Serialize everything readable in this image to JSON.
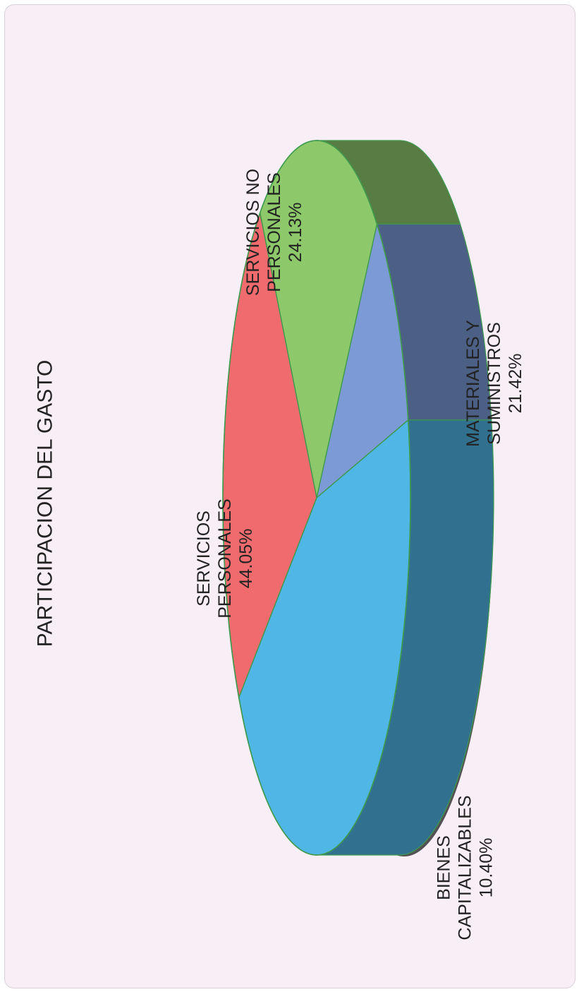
{
  "chart_data": {
    "type": "pie",
    "title": "PARTICIPACION DEL GASTO",
    "slices": [
      {
        "label": "SERVICIOS PERSONALES",
        "label_lines": [
          "SERVICIOS",
          "PERSONALES"
        ],
        "value": 44.05,
        "value_label": "44.05%",
        "color": "#4fb6e6"
      },
      {
        "label": "BIENES CAPITALIZABLES",
        "label_lines": [
          "BIENES",
          "CAPITALIZABLES"
        ],
        "value": 10.4,
        "value_label": "10.40%",
        "color": "#7b9ad6"
      },
      {
        "label": "MATERIALES Y SUMINISTROS",
        "label_lines": [
          "MATERIALES Y",
          "SUMINISTROS"
        ],
        "value": 21.42,
        "value_label": "21.42%",
        "color": "#8dc96a"
      },
      {
        "label": "SERVICIOS NO PERSONALES",
        "label_lines": [
          "SERVICIOS NO",
          "PERSONALES"
        ],
        "value": 24.13,
        "value_label": "24.13%",
        "color": "#ef6b6e"
      }
    ],
    "style": "3d",
    "orientation": "rotated 90° counter-clockwise",
    "legend": "none"
  }
}
